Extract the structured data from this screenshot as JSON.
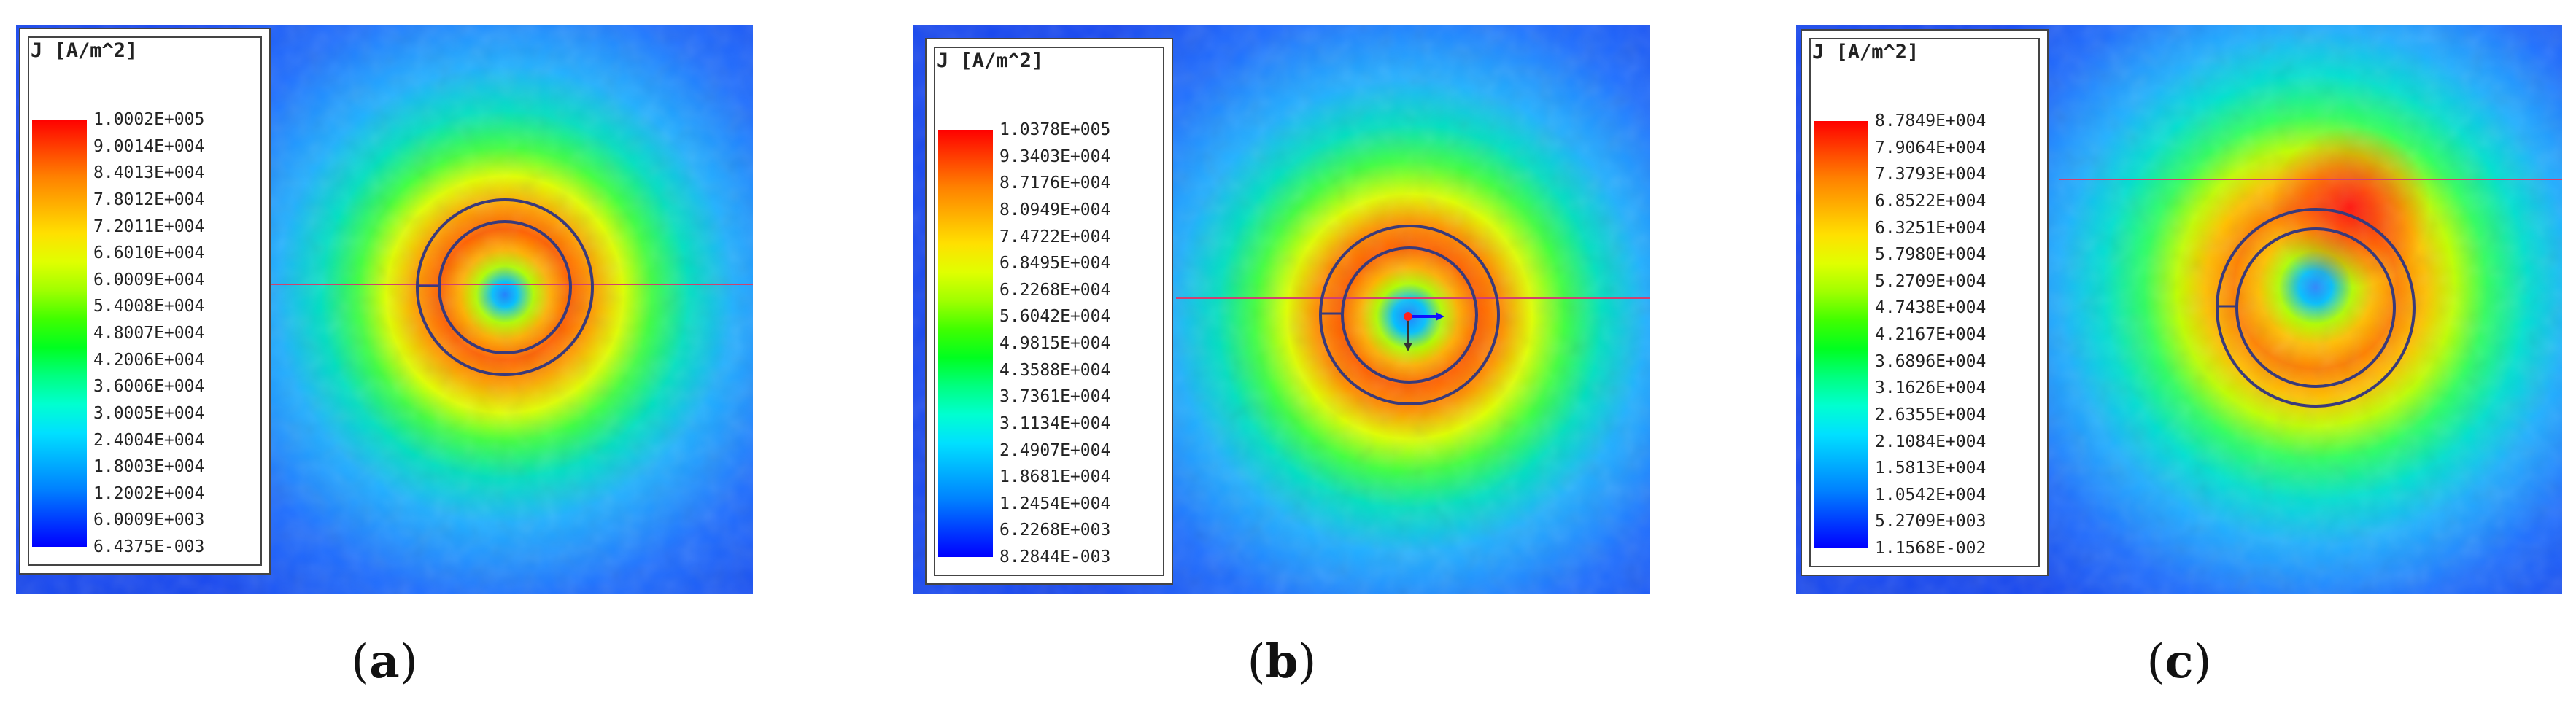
{
  "panels": [
    {
      "id": "a",
      "caption_open": "(",
      "caption_letter": "a",
      "caption_close": ")",
      "legend_title": "J [A/m^2]",
      "ticks": [
        "1.0002E+005",
        "9.0014E+004",
        "8.4013E+004",
        "7.8012E+004",
        "7.2011E+004",
        "6.6010E+004",
        "6.0009E+004",
        "5.4008E+004",
        "4.8007E+004",
        "4.2006E+004",
        "3.6006E+004",
        "3.0005E+004",
        "2.4004E+004",
        "1.8003E+004",
        "1.2002E+004",
        "6.0009E+003",
        "6.4375E-003"
      ],
      "peak_angle_deg": 90,
      "hot_spot": 0.15
    },
    {
      "id": "b",
      "caption_open": "(",
      "caption_letter": "b",
      "caption_close": ")",
      "legend_title": "J [A/m^2]",
      "ticks": [
        "1.0378E+005",
        "9.3403E+004",
        "8.7176E+004",
        "8.0949E+004",
        "7.4722E+004",
        "6.8495E+004",
        "6.2268E+004",
        "5.6042E+004",
        "4.9815E+004",
        "4.3588E+004",
        "3.7361E+004",
        "3.1134E+004",
        "2.4907E+004",
        "1.8681E+004",
        "1.2454E+004",
        "6.2268E+003",
        "8.2844E-003"
      ],
      "peak_angle_deg": 250,
      "hot_spot": 0.25
    },
    {
      "id": "c",
      "caption_open": "(",
      "caption_letter": "c",
      "caption_close": ")",
      "legend_title": "J [A/m^2]",
      "ticks": [
        "8.7849E+004",
        "7.9064E+004",
        "7.3793E+004",
        "6.8522E+004",
        "6.3251E+004",
        "5.7980E+004",
        "5.2709E+004",
        "4.7438E+004",
        "4.2167E+004",
        "3.6896E+004",
        "3.1626E+004",
        "2.6355E+004",
        "2.1084E+004",
        "1.5813E+004",
        "1.0542E+004",
        "5.2709E+003",
        "1.1568E-002"
      ],
      "peak_angle_deg": 270,
      "hot_spot": 0.5
    }
  ],
  "colormap": [
    "#0000ff",
    "#0040ff",
    "#0080ff",
    "#00b0ff",
    "#00e0ff",
    "#00ffd0",
    "#00ff80",
    "#00ff20",
    "#40ff00",
    "#a0ff00",
    "#e0ff00",
    "#ffe000",
    "#ffb000",
    "#ff8000",
    "#ff4000",
    "#ff0000"
  ]
}
